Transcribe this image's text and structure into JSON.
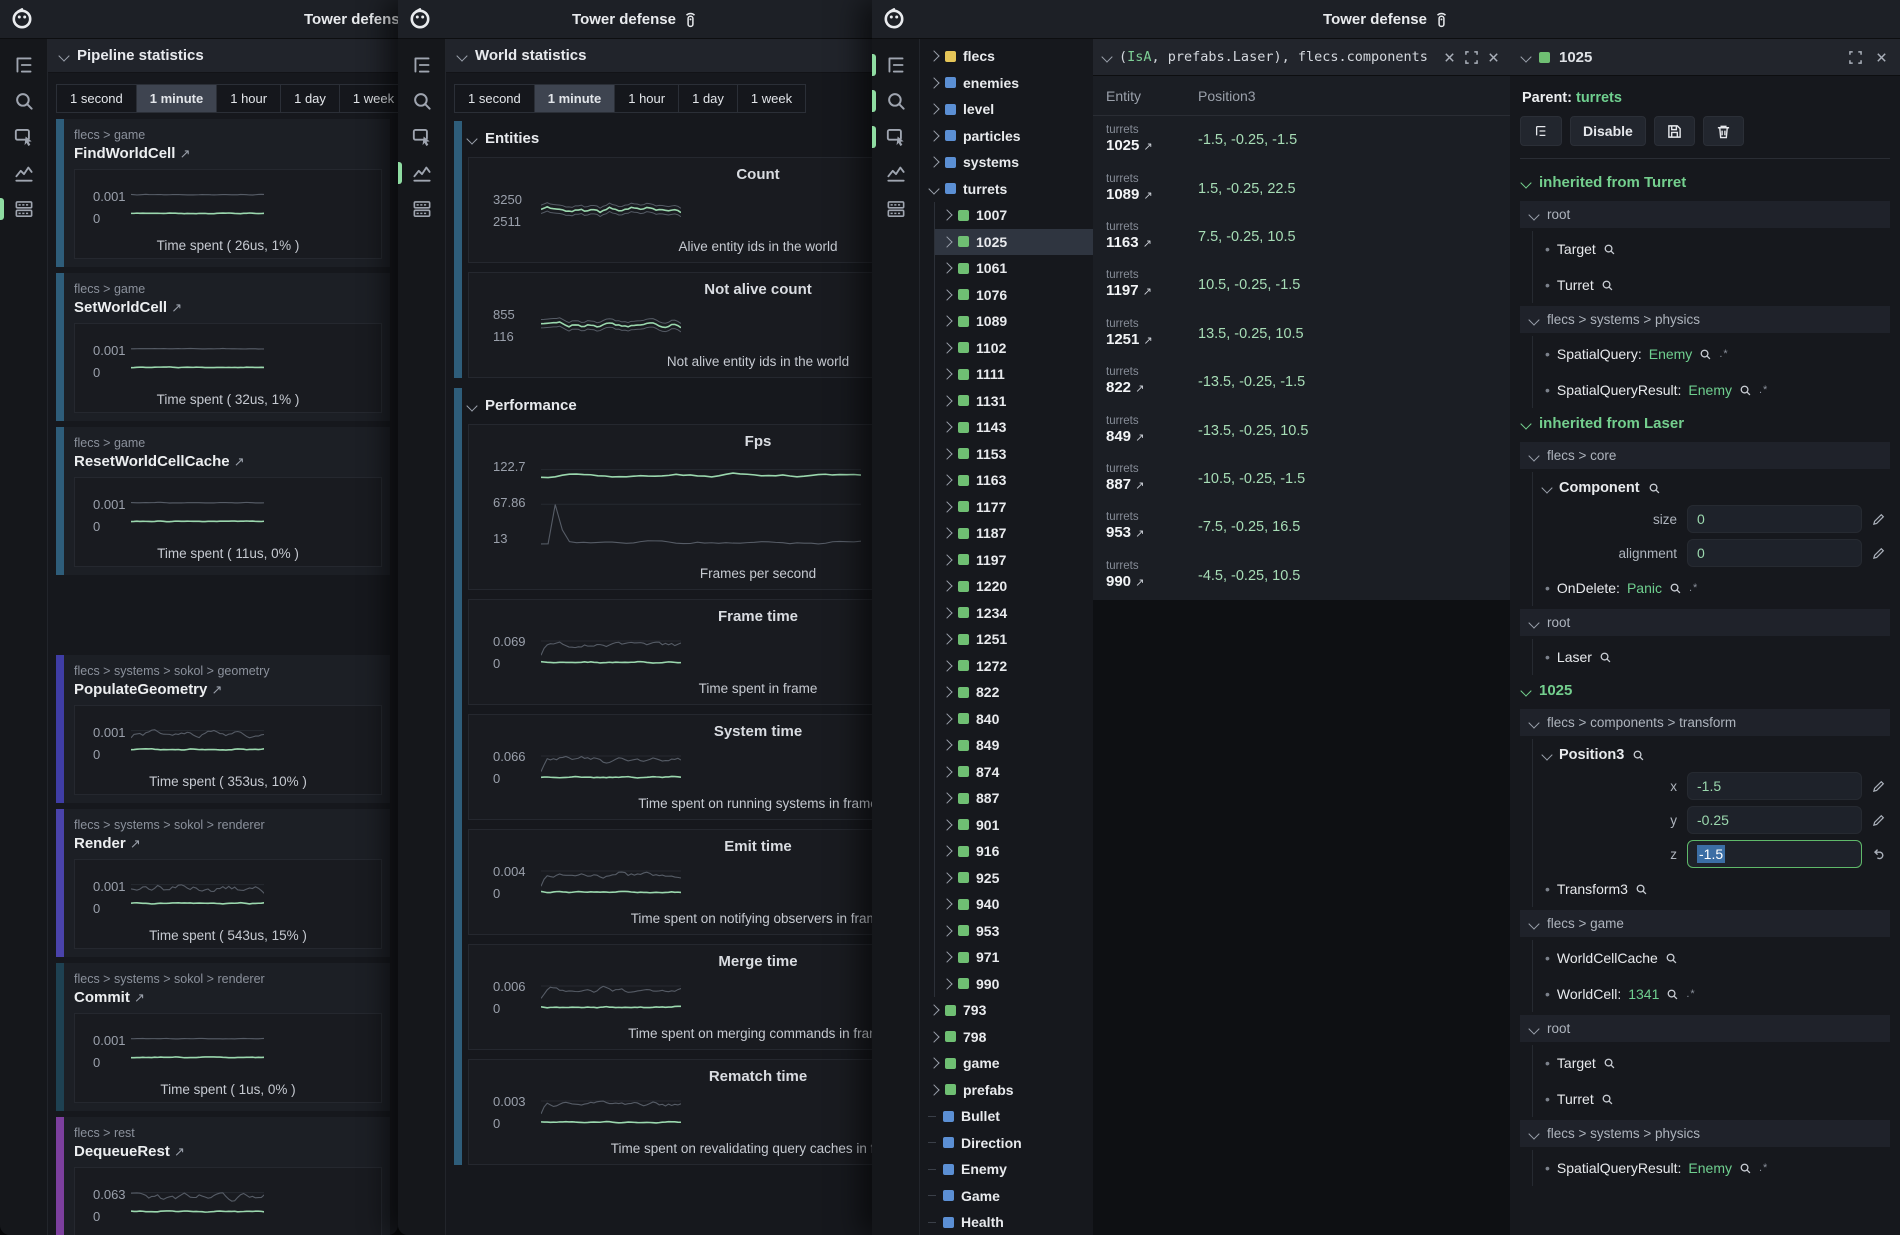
{
  "app": {
    "title": "Tower defense"
  },
  "time_ranges": [
    "1 second",
    "1 minute",
    "1 hour",
    "1 day",
    "1 week"
  ],
  "selected_range": "1 minute",
  "left_window": {
    "panel_title": "Pipeline statistics",
    "cards": [
      {
        "breadcrumb": "flecs > game",
        "name": "FindWorldCell",
        "ymax": "0.001",
        "ymin": "0",
        "caption": "Time spent ( 26us, 1% )",
        "accent": "#2e5d7a",
        "style": "flat"
      },
      {
        "breadcrumb": "flecs > game",
        "name": "SetWorldCell",
        "ymax": "0.001",
        "ymin": "0",
        "caption": "Time spent ( 32us, 1% )",
        "accent": "#2e5d7a",
        "style": "flat"
      },
      {
        "breadcrumb": "flecs > game",
        "name": "ResetWorldCellCache",
        "ymax": "0.001",
        "ymin": "0",
        "caption": "Time spent ( 11us, 0% )",
        "accent": "#2e5d7a",
        "style": "flat"
      },
      {
        "breadcrumb": "flecs > systems > sokol > geometry",
        "name": "PopulateGeometry",
        "ymax": "0.001",
        "ymin": "0",
        "caption": "Time spent ( 353us, 10% )",
        "accent": "#3f3da5",
        "style": "noisy",
        "group_break": true
      },
      {
        "breadcrumb": "flecs > systems > sokol > renderer",
        "name": "Render",
        "ymax": "0.001",
        "ymin": "0",
        "caption": "Time spent ( 543us, 15% )",
        "accent": "#4a43ab",
        "style": "noisy"
      },
      {
        "breadcrumb": "flecs > systems > sokol > renderer",
        "name": "Commit",
        "ymax": "0.001",
        "ymin": "0",
        "caption": "Time spent ( 1us, 0% )",
        "accent": "#1e4152",
        "style": "flat"
      },
      {
        "breadcrumb": "flecs > rest",
        "name": "DequeueRest",
        "ymax": "0.063",
        "ymin": "0",
        "caption": "Time spent",
        "accent": "#7c3f9e",
        "style": "noisy"
      }
    ]
  },
  "middle_window": {
    "panel_title": "World statistics",
    "sections": [
      {
        "title": "Entities",
        "cards": [
          {
            "title": "Count",
            "ylabels": [
              "3250",
              "2511"
            ],
            "caption": "Alive entity ids in the world",
            "style": "band"
          },
          {
            "title": "Not alive count",
            "ylabels": [
              "855",
              "116"
            ],
            "caption": "Not alive entity ids in the world",
            "style": "band"
          }
        ]
      },
      {
        "title": "Performance",
        "cards": [
          {
            "title": "Fps",
            "ylabels": [
              "122.7",
              "67.86",
              "13"
            ],
            "caption": "Frames per second",
            "style": "fps"
          },
          {
            "title": "Frame time",
            "ylabels": [
              "0.069",
              "0"
            ],
            "caption": "Time spent in frame",
            "style": "mnoisy"
          },
          {
            "title": "System time",
            "ylabels": [
              "0.066",
              "0"
            ],
            "caption": "Time spent on running systems in frame",
            "style": "mnoisy"
          },
          {
            "title": "Emit time",
            "ylabels": [
              "0.004",
              "0"
            ],
            "caption": "Time spent on notifying observers in frame",
            "style": "mnoisy"
          },
          {
            "title": "Merge time",
            "ylabels": [
              "0.006",
              "0"
            ],
            "caption": "Time spent on merging commands in frame",
            "style": "mnoisy"
          },
          {
            "title": "Rematch time",
            "ylabels": [
              "0.003",
              "0"
            ],
            "caption": "Time spent on revalidating query caches in frame",
            "style": "mnoisy"
          }
        ]
      }
    ]
  },
  "tree": {
    "items": [
      {
        "label": "flecs",
        "color": "yellow",
        "depth": 0,
        "chev": "right"
      },
      {
        "label": "enemies",
        "color": "blue",
        "depth": 0,
        "chev": "right"
      },
      {
        "label": "level",
        "color": "blue",
        "depth": 0,
        "chev": "right"
      },
      {
        "label": "particles",
        "color": "blue",
        "depth": 0,
        "chev": "right"
      },
      {
        "label": "systems",
        "color": "blue",
        "depth": 0,
        "chev": "right"
      },
      {
        "label": "turrets",
        "color": "blue",
        "depth": 0,
        "chev": "down"
      },
      {
        "label": "1007",
        "color": "green",
        "depth": 1,
        "chev": "right"
      },
      {
        "label": "1025",
        "color": "green",
        "depth": 1,
        "chev": "right",
        "selected": true
      },
      {
        "label": "1061",
        "color": "green",
        "depth": 1,
        "chev": "right"
      },
      {
        "label": "1076",
        "color": "green",
        "depth": 1,
        "chev": "right"
      },
      {
        "label": "1089",
        "color": "green",
        "depth": 1,
        "chev": "right"
      },
      {
        "label": "1102",
        "color": "green",
        "depth": 1,
        "chev": "right"
      },
      {
        "label": "1111",
        "color": "green",
        "depth": 1,
        "chev": "right"
      },
      {
        "label": "1131",
        "color": "green",
        "depth": 1,
        "chev": "right"
      },
      {
        "label": "1143",
        "color": "green",
        "depth": 1,
        "chev": "right"
      },
      {
        "label": "1153",
        "color": "green",
        "depth": 1,
        "chev": "right"
      },
      {
        "label": "1163",
        "color": "green",
        "depth": 1,
        "chev": "right"
      },
      {
        "label": "1177",
        "color": "green",
        "depth": 1,
        "chev": "right"
      },
      {
        "label": "1187",
        "color": "green",
        "depth": 1,
        "chev": "right"
      },
      {
        "label": "1197",
        "color": "green",
        "depth": 1,
        "chev": "right"
      },
      {
        "label": "1220",
        "color": "green",
        "depth": 1,
        "chev": "right"
      },
      {
        "label": "1234",
        "color": "green",
        "depth": 1,
        "chev": "right"
      },
      {
        "label": "1251",
        "color": "green",
        "depth": 1,
        "chev": "right"
      },
      {
        "label": "1272",
        "color": "green",
        "depth": 1,
        "chev": "right"
      },
      {
        "label": "822",
        "color": "green",
        "depth": 1,
        "chev": "right"
      },
      {
        "label": "840",
        "color": "green",
        "depth": 1,
        "chev": "right"
      },
      {
        "label": "849",
        "color": "green",
        "depth": 1,
        "chev": "right"
      },
      {
        "label": "874",
        "color": "green",
        "depth": 1,
        "chev": "right"
      },
      {
        "label": "887",
        "color": "green",
        "depth": 1,
        "chev": "right"
      },
      {
        "label": "901",
        "color": "green",
        "depth": 1,
        "chev": "right"
      },
      {
        "label": "916",
        "color": "green",
        "depth": 1,
        "chev": "right"
      },
      {
        "label": "925",
        "color": "green",
        "depth": 1,
        "chev": "right"
      },
      {
        "label": "940",
        "color": "green",
        "depth": 1,
        "chev": "right"
      },
      {
        "label": "953",
        "color": "green",
        "depth": 1,
        "chev": "right"
      },
      {
        "label": "971",
        "color": "green",
        "depth": 1,
        "chev": "right"
      },
      {
        "label": "990",
        "color": "green",
        "depth": 1,
        "chev": "right"
      },
      {
        "label": "793",
        "color": "green",
        "depth": 0,
        "chev": "right"
      },
      {
        "label": "798",
        "color": "green",
        "depth": 0,
        "chev": "right"
      },
      {
        "label": "game",
        "color": "green",
        "depth": 0,
        "chev": "right"
      },
      {
        "label": "prefabs",
        "color": "green",
        "depth": 0,
        "chev": "right"
      },
      {
        "label": "Bullet",
        "color": "blue",
        "depth": 0,
        "chev": "none"
      },
      {
        "label": "Direction",
        "color": "blue",
        "depth": 0,
        "chev": "none"
      },
      {
        "label": "Enemy",
        "color": "blue",
        "depth": 0,
        "chev": "none"
      },
      {
        "label": "Game",
        "color": "blue",
        "depth": 0,
        "chev": "none"
      },
      {
        "label": "Health",
        "color": "blue",
        "depth": 0,
        "chev": "none"
      }
    ]
  },
  "query": {
    "text_open": "(",
    "text_green": "IsA",
    "text_rest": ", prefabs.Laser), flecs.components",
    "columns": [
      "Entity",
      "Position3"
    ],
    "rows": [
      {
        "parent": "turrets",
        "id": "1025",
        "pos": "-1.5, -0.25, -1.5"
      },
      {
        "parent": "turrets",
        "id": "1089",
        "pos": "1.5, -0.25, 22.5"
      },
      {
        "parent": "turrets",
        "id": "1163",
        "pos": "7.5, -0.25, 10.5"
      },
      {
        "parent": "turrets",
        "id": "1197",
        "pos": "10.5, -0.25, -1.5"
      },
      {
        "parent": "turrets",
        "id": "1251",
        "pos": "13.5, -0.25, 10.5"
      },
      {
        "parent": "turrets",
        "id": "822",
        "pos": "-13.5, -0.25, -1.5"
      },
      {
        "parent": "turrets",
        "id": "849",
        "pos": "-13.5, -0.25, 10.5"
      },
      {
        "parent": "turrets",
        "id": "887",
        "pos": "-10.5, -0.25, -1.5"
      },
      {
        "parent": "turrets",
        "id": "953",
        "pos": "-7.5, -0.25, 16.5"
      },
      {
        "parent": "turrets",
        "id": "990",
        "pos": "-4.5, -0.25, 10.5"
      }
    ]
  },
  "inspector": {
    "entity": "1025",
    "parent_label": "Parent:",
    "parent": "turrets",
    "disable_label": "Disable",
    "blocks": [
      {
        "type": "section",
        "label": "inherited from Turret"
      },
      {
        "type": "group",
        "label": "root"
      },
      {
        "type": "tag",
        "name": "Target"
      },
      {
        "type": "tag",
        "name": "Turret"
      },
      {
        "type": "group",
        "label": "flecs > systems > physics"
      },
      {
        "type": "pair",
        "name": "SpatialQuery",
        "value": "Enemy"
      },
      {
        "type": "pair",
        "name": "SpatialQueryResult",
        "value": "Enemy"
      },
      {
        "type": "section",
        "label": "inherited from Laser"
      },
      {
        "type": "group",
        "label": "flecs > core"
      },
      {
        "type": "component",
        "name": "Component",
        "fields": [
          {
            "k": "size",
            "v": "0"
          },
          {
            "k": "alignment",
            "v": "0"
          }
        ]
      },
      {
        "type": "pair",
        "name": "OnDelete",
        "value": "Panic"
      },
      {
        "type": "group",
        "label": "root"
      },
      {
        "type": "tag",
        "name": "Laser"
      },
      {
        "type": "section",
        "label": "1025"
      },
      {
        "type": "group",
        "label": "flecs > components > transform"
      },
      {
        "type": "component",
        "name": "Position3",
        "fields": [
          {
            "k": "x",
            "v": "-1.5"
          },
          {
            "k": "y",
            "v": "-0.25"
          },
          {
            "k": "z",
            "v": "-1.5",
            "focused": true
          }
        ]
      },
      {
        "type": "tag",
        "name": "Transform3"
      },
      {
        "type": "group",
        "label": "flecs > game"
      },
      {
        "type": "tag",
        "name": "WorldCellCache"
      },
      {
        "type": "pair",
        "name": "WorldCell",
        "value": "1341"
      },
      {
        "type": "group",
        "label": "root"
      },
      {
        "type": "tag",
        "name": "Target"
      },
      {
        "type": "tag",
        "name": "Turret"
      },
      {
        "type": "group",
        "label": "flecs > systems > physics"
      },
      {
        "type": "pair",
        "name": "SpatialQueryResult",
        "value": "Enemy"
      }
    ]
  },
  "colors": {
    "green_line": "#9bd8ae",
    "grey_line": "#565c66",
    "accent_green": "#6fcf8f",
    "square_yellow": "#e5c558",
    "square_blue": "#5b8fd4",
    "square_green": "#6fbf73"
  }
}
